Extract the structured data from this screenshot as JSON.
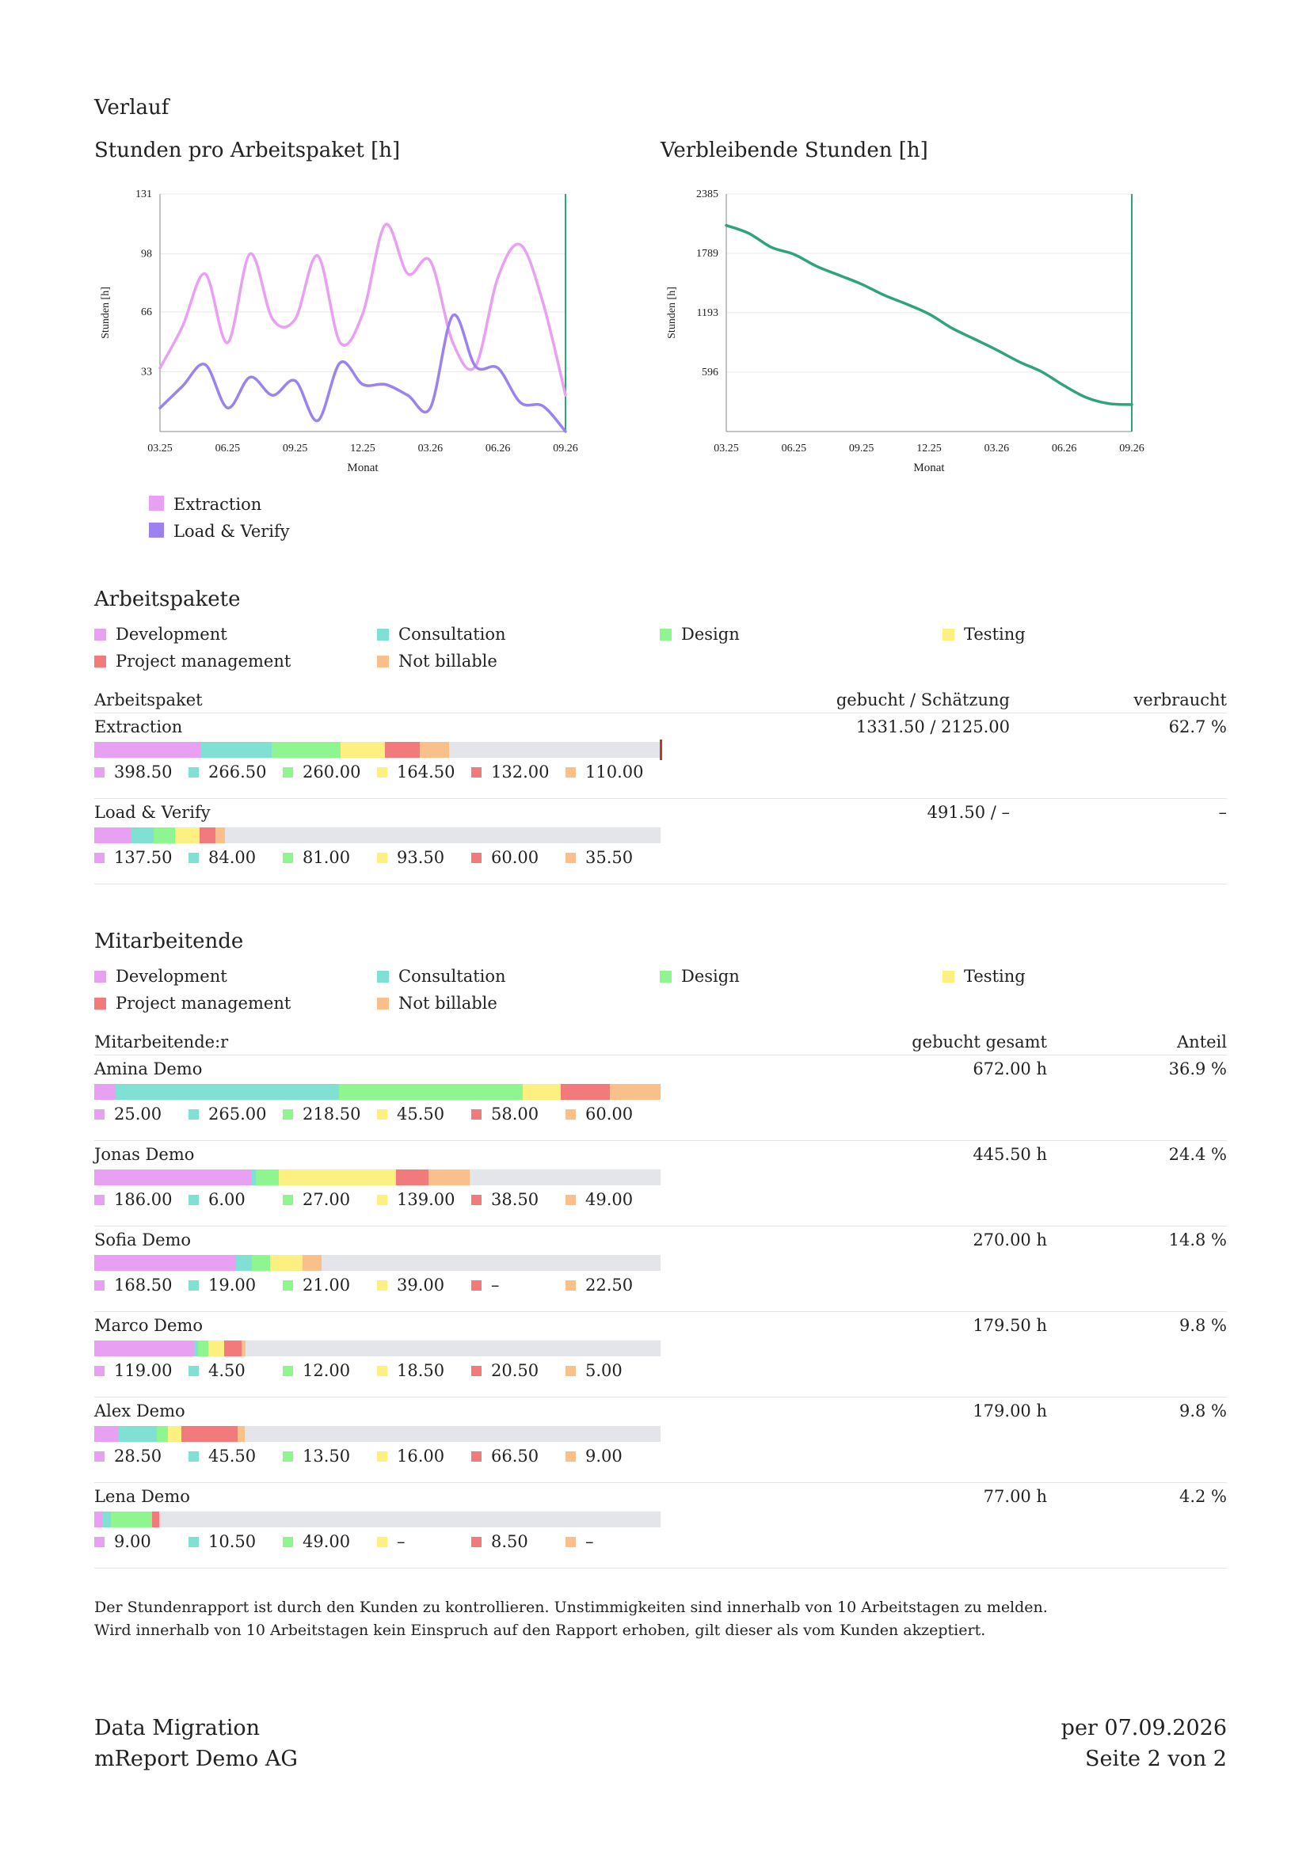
{
  "verlauf_title": "Verlauf",
  "chart1": {
    "title": "Stunden pro Arbeitspaket [h]",
    "ylabel": "Stunden [h]",
    "xlabel": "Monat",
    "yticks": [
      "131",
      "98",
      "66",
      "33"
    ],
    "xticks": [
      "03.25",
      "06.25",
      "09.25",
      "12.25",
      "03.26",
      "06.26",
      "09.26"
    ],
    "legend": [
      {
        "label": "Extraction",
        "color": "#e8a0f2"
      },
      {
        "label": "Load & Verify",
        "color": "#9b82ef"
      }
    ]
  },
  "chart2": {
    "title": "Verbleibende Stunden [h]",
    "ylabel": "Stunden [h]",
    "xlabel": "Monat",
    "yticks": [
      "2385",
      "1789",
      "1193",
      "596"
    ],
    "xticks": [
      "03.25",
      "06.25",
      "09.25",
      "12.25",
      "03.26",
      "06.26",
      "09.26"
    ],
    "color": "#2fa37a"
  },
  "chart_data": [
    {
      "type": "line",
      "title": "Stunden pro Arbeitspaket [h]",
      "xlabel": "Monat",
      "ylabel": "Stunden [h]",
      "ylim": [
        0,
        131
      ],
      "x": [
        "03.25",
        "04.25",
        "05.25",
        "06.25",
        "07.25",
        "08.25",
        "09.25",
        "10.25",
        "11.25",
        "12.25",
        "01.26",
        "02.26",
        "03.26",
        "04.26",
        "05.26",
        "06.26",
        "07.26",
        "08.26",
        "09.26"
      ],
      "series": [
        {
          "name": "Extraction",
          "color": "#e8a0f2",
          "values": [
            35,
            58,
            87,
            49,
            98,
            62,
            62,
            97,
            49,
            65,
            114,
            87,
            94,
            49,
            36,
            85,
            103,
            71,
            20
          ]
        },
        {
          "name": "Load & Verify",
          "color": "#9b82ef",
          "values": [
            13,
            25,
            37,
            13,
            30,
            20,
            28,
            6,
            38,
            26,
            26,
            20,
            13,
            64,
            36,
            35,
            16,
            14,
            0
          ]
        }
      ]
    },
    {
      "type": "line",
      "title": "Verbleibende Stunden [h]",
      "xlabel": "Monat",
      "ylabel": "Stunden [h]",
      "ylim": [
        0,
        2385
      ],
      "x": [
        "03.25",
        "04.25",
        "05.25",
        "06.25",
        "07.25",
        "08.25",
        "09.25",
        "10.25",
        "11.25",
        "12.25",
        "01.26",
        "02.26",
        "03.26",
        "04.26",
        "05.26",
        "06.26",
        "07.26",
        "08.26",
        "09.26"
      ],
      "series": [
        {
          "name": "",
          "color": "#2fa37a",
          "values": [
            2070,
            1990,
            1850,
            1780,
            1660,
            1570,
            1480,
            1370,
            1280,
            1180,
            1040,
            930,
            820,
            700,
            600,
            460,
            340,
            280,
            270
          ]
        }
      ]
    }
  ],
  "colors": {
    "development": "#e8a0f2",
    "consultation": "#80e0d4",
    "design": "#8ef58f",
    "testing": "#fbf080",
    "project_management": "#f27a7a",
    "not_billable": "#f9c08a",
    "track": "#e3e5ea",
    "marker": "#c0392b"
  },
  "categories": [
    {
      "label": "Development",
      "color": "#e8a0f2"
    },
    {
      "label": "Consultation",
      "color": "#80e0d4"
    },
    {
      "label": "Design",
      "color": "#8ef58f"
    },
    {
      "label": "Testing",
      "color": "#fbf080"
    },
    {
      "label": "Project management",
      "color": "#f27a7a"
    },
    {
      "label": "Not billable",
      "color": "#f9c08a"
    }
  ],
  "arbeitspakete": {
    "title": "Arbeitspakete",
    "col1": "Arbeitspaket",
    "col2": "gebucht / Schätzung",
    "col3": "verbraucht",
    "rows": [
      {
        "name": "Extraction",
        "booked": "1331.50 / 2125.00",
        "used": "62.7 %",
        "used_fraction": 0.627,
        "values": [
          "398.50",
          "266.50",
          "260.00",
          "164.50",
          "132.00",
          "110.00"
        ],
        "nums": [
          398.5,
          266.5,
          260.0,
          164.5,
          132.0,
          110.0
        ],
        "total": 2125.0,
        "marker": true
      },
      {
        "name": "Load & Verify",
        "booked": "491.50 / –",
        "used": "–",
        "values": [
          "137.50",
          "84.00",
          "81.00",
          "93.50",
          "60.00",
          "35.50"
        ],
        "nums": [
          137.5,
          84.0,
          81.0,
          93.5,
          60.0,
          35.5
        ],
        "total": 2125.0,
        "marker": false
      }
    ]
  },
  "mitarbeitende": {
    "title": "Mitarbeitende",
    "col1": "Mitarbeitende:r",
    "col2": "gebucht gesamt",
    "col3": "Anteil",
    "rows": [
      {
        "name": "Amina Demo",
        "booked": "672.00 h",
        "share": "36.9 %",
        "values": [
          "25.00",
          "265.00",
          "218.50",
          "45.50",
          "58.00",
          "60.00"
        ],
        "nums": [
          25.0,
          265.0,
          218.5,
          45.5,
          58.0,
          60.0
        ]
      },
      {
        "name": "Jonas Demo",
        "booked": "445.50 h",
        "share": "24.4 %",
        "values": [
          "186.00",
          "6.00",
          "27.00",
          "139.00",
          "38.50",
          "49.00"
        ],
        "nums": [
          186.0,
          6.0,
          27.0,
          139.0,
          38.5,
          49.0
        ]
      },
      {
        "name": "Sofia Demo",
        "booked": "270.00 h",
        "share": "14.8 %",
        "values": [
          "168.50",
          "19.00",
          "21.00",
          "39.00",
          "–",
          "22.50"
        ],
        "nums": [
          168.5,
          19.0,
          21.0,
          39.0,
          0,
          22.5
        ]
      },
      {
        "name": "Marco Demo",
        "booked": "179.50 h",
        "share": "9.8 %",
        "values": [
          "119.00",
          "4.50",
          "12.00",
          "18.50",
          "20.50",
          "5.00"
        ],
        "nums": [
          119.0,
          4.5,
          12.0,
          18.5,
          20.5,
          5.0
        ]
      },
      {
        "name": "Alex Demo",
        "booked": "179.00 h",
        "share": "9.8 %",
        "values": [
          "28.50",
          "45.50",
          "13.50",
          "16.00",
          "66.50",
          "9.00"
        ],
        "nums": [
          28.5,
          45.5,
          13.5,
          16.0,
          66.5,
          9.0
        ]
      },
      {
        "name": "Lena Demo",
        "booked": "77.00 h",
        "share": "4.2 %",
        "values": [
          "9.00",
          "10.50",
          "49.00",
          "–",
          "8.50",
          "–"
        ],
        "nums": [
          9.0,
          10.5,
          49.0,
          0,
          8.5,
          0
        ]
      }
    ]
  },
  "footnote": {
    "line1": "Der Stundenrapport ist durch den Kunden zu kontrollieren. Unstimmigkeiten sind innerhalb von 10 Arbeitstagen zu melden.",
    "line2": "Wird innerhalb von 10 Arbeitstagen kein Einspruch auf den Rapport erhoben, gilt dieser als vom Kunden akzeptiert."
  },
  "footer": {
    "project": "Data Migration",
    "company": "mReport Demo AG",
    "date": "per 07.09.2026",
    "page": "Seite 2 von 2"
  }
}
